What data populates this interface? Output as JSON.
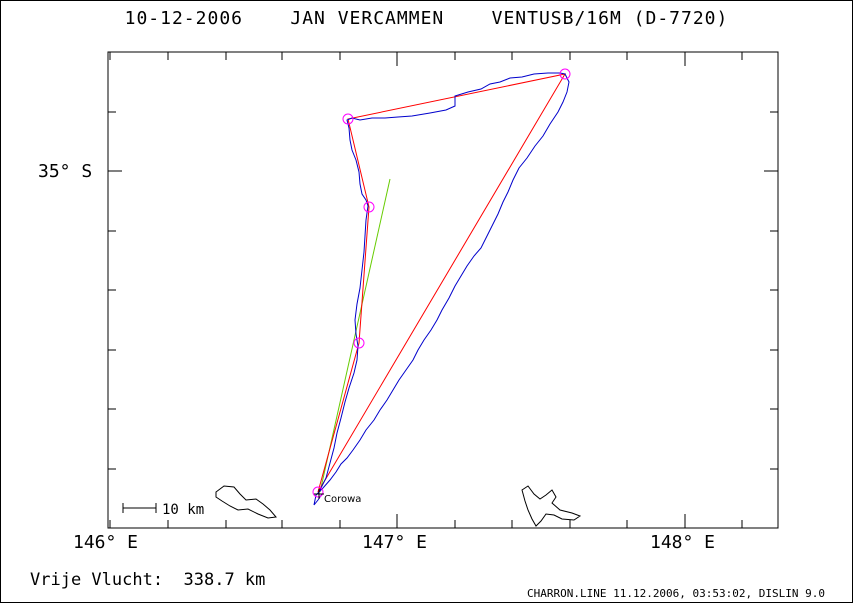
{
  "title": {
    "date": "10-12-2006",
    "pilot": "JAN VERCAMMEN",
    "glider": "VENTUSB/16M (D-7720)"
  },
  "map": {
    "lat_label": "35° S",
    "lon_labels": [
      "146° E",
      "147° E",
      "148° E"
    ],
    "town_label": "Corowa",
    "scale_label": "10 km",
    "colors": {
      "track": "#0000cc",
      "task": "#ff0000",
      "extra_line": "#66cc00",
      "turnpoint": "#ff00ff"
    }
  },
  "footer": {
    "distance": "Vrije Vlucht:  338.7 km",
    "source": "CHARRON.LINE 11.12.2006, 03:53:02, DISLIN 9.0"
  }
}
